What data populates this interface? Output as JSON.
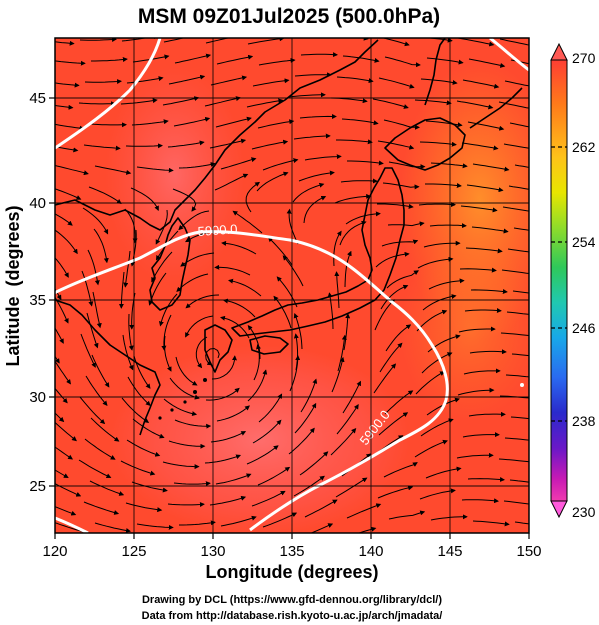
{
  "title": "MSM 09Z01Jul2025 (500.0hPa)",
  "axes": {
    "xlabel": "Longitude (degrees)",
    "ylabel": "Latitude  (degrees)",
    "xticks": [
      "120",
      "125",
      "130",
      "135",
      "140",
      "145",
      "150"
    ],
    "yticks": [
      "25",
      "30",
      "35",
      "40",
      "45"
    ]
  },
  "colorbar": {
    "labels": [
      "270",
      "262",
      "254",
      "246",
      "238",
      "230"
    ],
    "colors": [
      "#ff3e33",
      "#ff7a1a",
      "#ffc21a",
      "#e8e600",
      "#8fdc2a",
      "#2fc85a",
      "#20c8b0",
      "#18a8e8",
      "#2a6af0",
      "#2a2acc",
      "#6a18c8",
      "#c81ab4",
      "#f03ab0"
    ]
  },
  "contours": {
    "label_1": "5900.0",
    "label_2": "5900.0"
  },
  "footer": {
    "line_1": "Drawing by DCL (https://www.gfd-dennou.org/library/dcl/)",
    "line_2": "Data from http://database.rish.kyoto-u.ac.jp/arch/jmadata/"
  }
}
